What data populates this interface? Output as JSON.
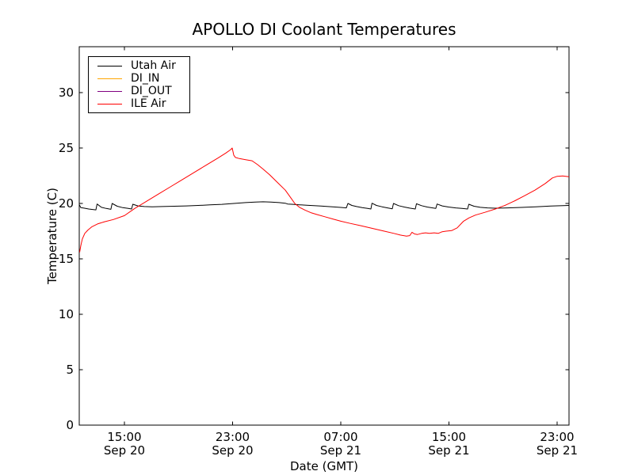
{
  "chart_data": {
    "type": "line",
    "title": "APOLLO DI Coolant Temperatures",
    "xlabel": "Date (GMT)",
    "ylabel": "Temperature (C)",
    "x_unit": "hours since Sep 20 00:00 GMT",
    "xlim": [
      11.66,
      47.88
    ],
    "ylim": [
      0,
      34.14
    ],
    "grid": false,
    "background": "#ffffff",
    "spine_color": "#000000",
    "legend_position": "upper-left",
    "y_ticks": [
      0,
      5,
      10,
      15,
      20,
      25,
      30
    ],
    "x_ticks": [
      {
        "value": 15,
        "line1": "15:00",
        "line2": "Sep 20"
      },
      {
        "value": 23,
        "line1": "23:00",
        "line2": "Sep 20"
      },
      {
        "value": 31,
        "line1": "07:00",
        "line2": "Sep 21"
      },
      {
        "value": 39,
        "line1": "15:00",
        "line2": "Sep 21"
      },
      {
        "value": 47,
        "line1": "23:00",
        "line2": "Sep 21"
      }
    ],
    "series": [
      {
        "name": "Utah Air",
        "color": "#000000",
        "points": [
          [
            11.66,
            19.9
          ],
          [
            11.78,
            19.62
          ],
          [
            12.01,
            19.58
          ],
          [
            12.36,
            19.5
          ],
          [
            12.71,
            19.45
          ],
          [
            12.89,
            19.42
          ],
          [
            12.98,
            19.95
          ],
          [
            13.3,
            19.65
          ],
          [
            13.65,
            19.55
          ],
          [
            14.0,
            19.47
          ],
          [
            14.09,
            20.0
          ],
          [
            14.47,
            19.75
          ],
          [
            14.88,
            19.62
          ],
          [
            15.29,
            19.55
          ],
          [
            15.53,
            19.5
          ],
          [
            15.62,
            19.93
          ],
          [
            16.0,
            19.78
          ],
          [
            16.47,
            19.72
          ],
          [
            17.05,
            19.7
          ],
          [
            17.81,
            19.72
          ],
          [
            18.69,
            19.75
          ],
          [
            19.57,
            19.78
          ],
          [
            20.45,
            19.82
          ],
          [
            21.33,
            19.87
          ],
          [
            22.21,
            19.92
          ],
          [
            23.09,
            20.0
          ],
          [
            23.97,
            20.08
          ],
          [
            24.67,
            20.13
          ],
          [
            25.26,
            20.15
          ],
          [
            25.84,
            20.12
          ],
          [
            26.43,
            20.08
          ],
          [
            26.9,
            20.02
          ],
          [
            27.07,
            19.95
          ],
          [
            27.48,
            19.92
          ],
          [
            27.95,
            19.88
          ],
          [
            28.48,
            19.84
          ],
          [
            29.01,
            19.8
          ],
          [
            29.53,
            19.76
          ],
          [
            30.06,
            19.72
          ],
          [
            30.59,
            19.68
          ],
          [
            31.0,
            19.64
          ],
          [
            31.41,
            19.6
          ],
          [
            31.53,
            20.0
          ],
          [
            31.82,
            19.82
          ],
          [
            32.17,
            19.72
          ],
          [
            32.58,
            19.62
          ],
          [
            32.99,
            19.55
          ],
          [
            33.23,
            19.5
          ],
          [
            33.31,
            20.02
          ],
          [
            33.64,
            19.82
          ],
          [
            34.05,
            19.7
          ],
          [
            34.46,
            19.6
          ],
          [
            34.81,
            19.52
          ],
          [
            34.9,
            20.0
          ],
          [
            35.28,
            19.8
          ],
          [
            35.69,
            19.68
          ],
          [
            36.1,
            19.58
          ],
          [
            36.51,
            19.5
          ],
          [
            36.6,
            19.97
          ],
          [
            36.98,
            19.8
          ],
          [
            37.39,
            19.68
          ],
          [
            37.8,
            19.6
          ],
          [
            38.03,
            19.55
          ],
          [
            38.12,
            19.95
          ],
          [
            38.5,
            19.78
          ],
          [
            38.97,
            19.68
          ],
          [
            39.5,
            19.6
          ],
          [
            39.97,
            19.55
          ],
          [
            40.38,
            19.5
          ],
          [
            40.47,
            19.93
          ],
          [
            40.85,
            19.75
          ],
          [
            41.32,
            19.65
          ],
          [
            41.85,
            19.6
          ],
          [
            42.43,
            19.57
          ],
          [
            43.31,
            19.6
          ],
          [
            44.36,
            19.64
          ],
          [
            45.42,
            19.7
          ],
          [
            46.53,
            19.76
          ],
          [
            47.88,
            19.82
          ]
        ]
      },
      {
        "name": "DI_IN",
        "color": "#ffa500",
        "points": []
      },
      {
        "name": "DI_OUT",
        "color": "#800080",
        "points": []
      },
      {
        "name": "ILE Air",
        "color": "#ff0000",
        "points": [
          [
            11.69,
            15.6
          ],
          [
            11.78,
            16.2
          ],
          [
            11.89,
            16.8
          ],
          [
            12.07,
            17.3
          ],
          [
            12.3,
            17.6
          ],
          [
            12.6,
            17.9
          ],
          [
            13.01,
            18.15
          ],
          [
            13.53,
            18.35
          ],
          [
            14.18,
            18.55
          ],
          [
            15.0,
            18.9
          ],
          [
            15.76,
            19.55
          ],
          [
            16.64,
            20.2
          ],
          [
            17.52,
            20.85
          ],
          [
            18.4,
            21.5
          ],
          [
            19.28,
            22.15
          ],
          [
            20.16,
            22.8
          ],
          [
            21.04,
            23.45
          ],
          [
            21.92,
            24.1
          ],
          [
            22.5,
            24.55
          ],
          [
            22.85,
            24.85
          ],
          [
            22.97,
            25.0
          ],
          [
            23.09,
            24.35
          ],
          [
            23.21,
            24.15
          ],
          [
            23.5,
            24.05
          ],
          [
            23.97,
            23.95
          ],
          [
            24.44,
            23.85
          ],
          [
            24.85,
            23.5
          ],
          [
            25.26,
            23.1
          ],
          [
            25.73,
            22.6
          ],
          [
            26.31,
            21.9
          ],
          [
            26.9,
            21.2
          ],
          [
            27.25,
            20.6
          ],
          [
            27.6,
            20.0
          ],
          [
            27.95,
            19.65
          ],
          [
            28.36,
            19.4
          ],
          [
            28.83,
            19.15
          ],
          [
            29.24,
            19.0
          ],
          [
            29.83,
            18.8
          ],
          [
            30.41,
            18.6
          ],
          [
            31.0,
            18.4
          ],
          [
            31.7,
            18.2
          ],
          [
            32.46,
            18.0
          ],
          [
            33.34,
            17.75
          ],
          [
            34.22,
            17.5
          ],
          [
            34.93,
            17.3
          ],
          [
            35.4,
            17.15
          ],
          [
            35.86,
            17.05
          ],
          [
            36.1,
            17.1
          ],
          [
            36.27,
            17.4
          ],
          [
            36.45,
            17.25
          ],
          [
            36.68,
            17.2
          ],
          [
            36.98,
            17.3
          ],
          [
            37.27,
            17.35
          ],
          [
            37.56,
            17.3
          ],
          [
            37.91,
            17.35
          ],
          [
            38.21,
            17.3
          ],
          [
            38.5,
            17.45
          ],
          [
            38.79,
            17.5
          ],
          [
            39.2,
            17.55
          ],
          [
            39.61,
            17.8
          ],
          [
            40.08,
            18.4
          ],
          [
            40.49,
            18.7
          ],
          [
            40.96,
            18.95
          ],
          [
            41.66,
            19.2
          ],
          [
            42.43,
            19.5
          ],
          [
            43.19,
            19.85
          ],
          [
            43.89,
            20.25
          ],
          [
            44.6,
            20.7
          ],
          [
            45.36,
            21.2
          ],
          [
            46.12,
            21.8
          ],
          [
            46.65,
            22.3
          ],
          [
            47.0,
            22.45
          ],
          [
            47.41,
            22.48
          ],
          [
            47.82,
            22.42
          ],
          [
            47.88,
            22.4
          ]
        ]
      }
    ]
  }
}
